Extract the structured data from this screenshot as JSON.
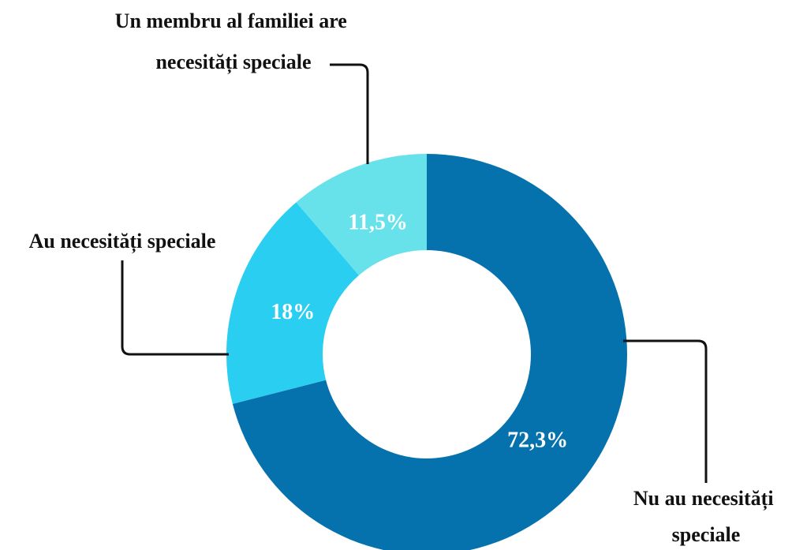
{
  "chart_data": {
    "type": "pie",
    "variant": "donut",
    "title": "",
    "slices": [
      {
        "label": "Nu au necesități speciale",
        "label_lines": [
          "Nu au necesități",
          "speciale"
        ],
        "value": 72.3,
        "display": "72,3%",
        "color": "#0672ad"
      },
      {
        "label": "Au necesități speciale",
        "label_lines": [
          "Au necesități speciale"
        ],
        "value": 18,
        "display": "18%",
        "color": "#2acef1"
      },
      {
        "label": "Un membru al familiei are necesități speciale",
        "label_lines": [
          "Un membru al familiei are",
          "necesități speciale"
        ],
        "value": 11.5,
        "display": "11,5%",
        "color": "#68e2ea"
      }
    ],
    "start_angle": "12 o'clock",
    "direction": "clockwise",
    "legend": "none",
    "labels": "outside with leader lines"
  }
}
